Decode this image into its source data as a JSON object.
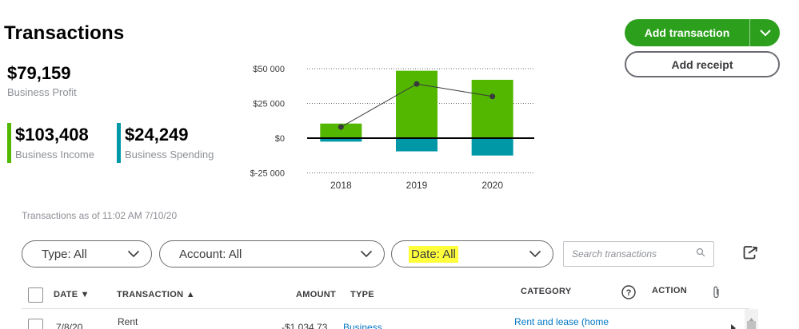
{
  "header": {
    "title": "Transactions",
    "add_transaction_label": "Add transaction",
    "add_receipt_label": "Add receipt"
  },
  "summary": {
    "profit": {
      "value": "$79,159",
      "label": "Business Profit"
    },
    "income": {
      "value": "$103,408",
      "label": "Business Income",
      "color": "#53b700"
    },
    "spending": {
      "value": "$24,249",
      "label": "Business Spending",
      "color": "#0097a7"
    }
  },
  "chart_data": {
    "type": "bar",
    "categories": [
      "2018",
      "2019",
      "2020"
    ],
    "series": [
      {
        "values": [
          10500,
          48500,
          42000
        ],
        "color": "#53b700"
      },
      {
        "values": [
          -2500,
          -9500,
          -12500
        ],
        "color": "#0097a7"
      },
      {
        "values": [
          8000,
          39000,
          30000
        ],
        "color": "#393a3d",
        "kind": "line"
      }
    ],
    "y_ticks": [
      "$50 000",
      "$25 000",
      "$0",
      "$-25 000"
    ],
    "y_tick_values": [
      50000,
      25000,
      0,
      -25000
    ],
    "ylim": [
      -25000,
      50000
    ],
    "grid": "dotted"
  },
  "as_of_text": "Transactions as of 11:02 AM 7/10/20",
  "filters": {
    "type_label": "Type: All",
    "account_label": "Account: All",
    "date_label": "Date: All",
    "search_placeholder": "Search transactions"
  },
  "table": {
    "columns": {
      "date": "DATE ▼",
      "transaction": "TRANSACTION ▲",
      "amount": "AMOUNT",
      "type": "TYPE",
      "category": "CATEGORY",
      "action": "ACTION"
    },
    "rows": [
      {
        "date": "7/8/20",
        "transaction": "Rent",
        "amount": "-$1,034.73",
        "type": "Business",
        "category": "Rent and lease (home"
      }
    ]
  }
}
